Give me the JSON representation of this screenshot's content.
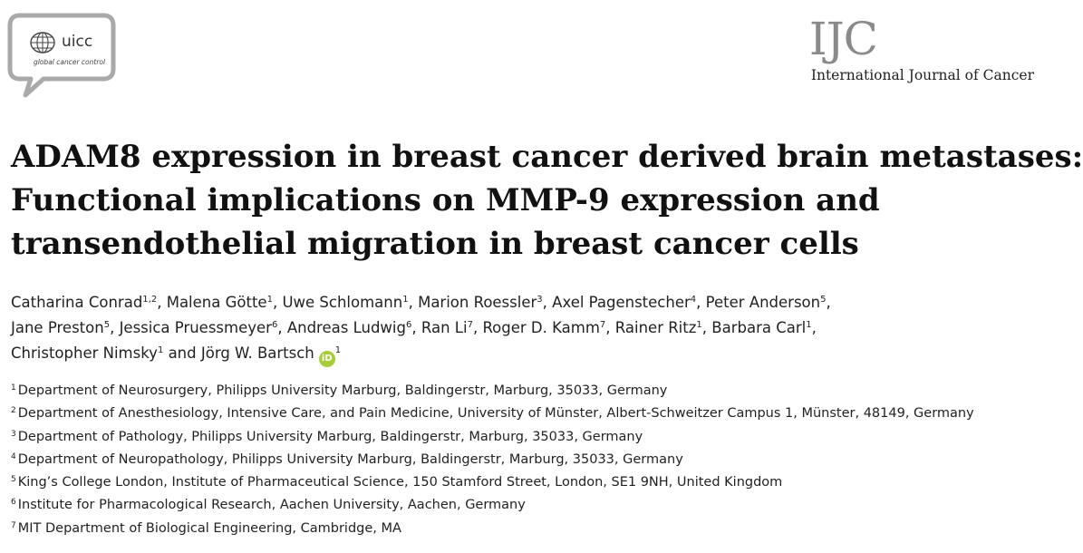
{
  "header": {
    "logo_text": "uicc",
    "logo_tagline": "global cancer control",
    "journal_abbrev": "IJC",
    "journal_name": "International Journal of Cancer"
  },
  "title_lines": [
    "ADAM8 expression in breast cancer derived brain metastases:",
    "Functional implications on MMP-9 expression and",
    "transendothelial migration in breast cancer cells"
  ],
  "authors": [
    {
      "name": "Catharina Conrad",
      "aff": "1,2"
    },
    {
      "name": "Malena Götte",
      "aff": "1"
    },
    {
      "name": "Uwe Schlomann",
      "aff": "1"
    },
    {
      "name": "Marion Roessler",
      "aff": "3"
    },
    {
      "name": "Axel Pagenstecher",
      "aff": "4"
    },
    {
      "name": "Peter Anderson",
      "aff": "5"
    },
    {
      "name": "Jane Preston",
      "aff": "5"
    },
    {
      "name": "Jessica Pruessmeyer",
      "aff": "6"
    },
    {
      "name": "Andreas Ludwig",
      "aff": "6"
    },
    {
      "name": "Ran Li",
      "aff": "7"
    },
    {
      "name": "Roger D. Kamm",
      "aff": "7"
    },
    {
      "name": "Rainer Ritz",
      "aff": "1"
    },
    {
      "name": "Barbara Carl",
      "aff": "1"
    },
    {
      "name": "Christopher Nimsky",
      "aff": "1"
    },
    {
      "name": "Jörg W. Bartsch",
      "aff": "1"
    }
  ],
  "authors_separator": ", ",
  "authors_conjunction": " and ",
  "orcid_label": "iD",
  "affiliations": [
    {
      "num": "1",
      "text": "Department of Neurosurgery, Philipps University Marburg, Baldingerstr, Marburg, 35033, Germany"
    },
    {
      "num": "2",
      "text": "Department of Anesthesiology, Intensive Care, and Pain Medicine, University of Münster, Albert-Schweitzer Campus 1, Münster, 48149, Germany"
    },
    {
      "num": "3",
      "text": "Department of Pathology, Philipps University Marburg, Baldingerstr, Marburg, 35033, Germany"
    },
    {
      "num": "4",
      "text": "Department of Neuropathology, Philipps University Marburg, Baldingerstr, Marburg, 35033, Germany"
    },
    {
      "num": "5",
      "text": "King’s College London, Institute of Pharmaceutical Science, 150 Stamford Street, London, SE1 9NH, United Kingdom"
    },
    {
      "num": "6",
      "text": "Institute for Pharmacological Research, Aachen University, Aachen, Germany"
    },
    {
      "num": "7",
      "text": "MIT Department of Biological Engineering, Cambridge, MA"
    }
  ]
}
